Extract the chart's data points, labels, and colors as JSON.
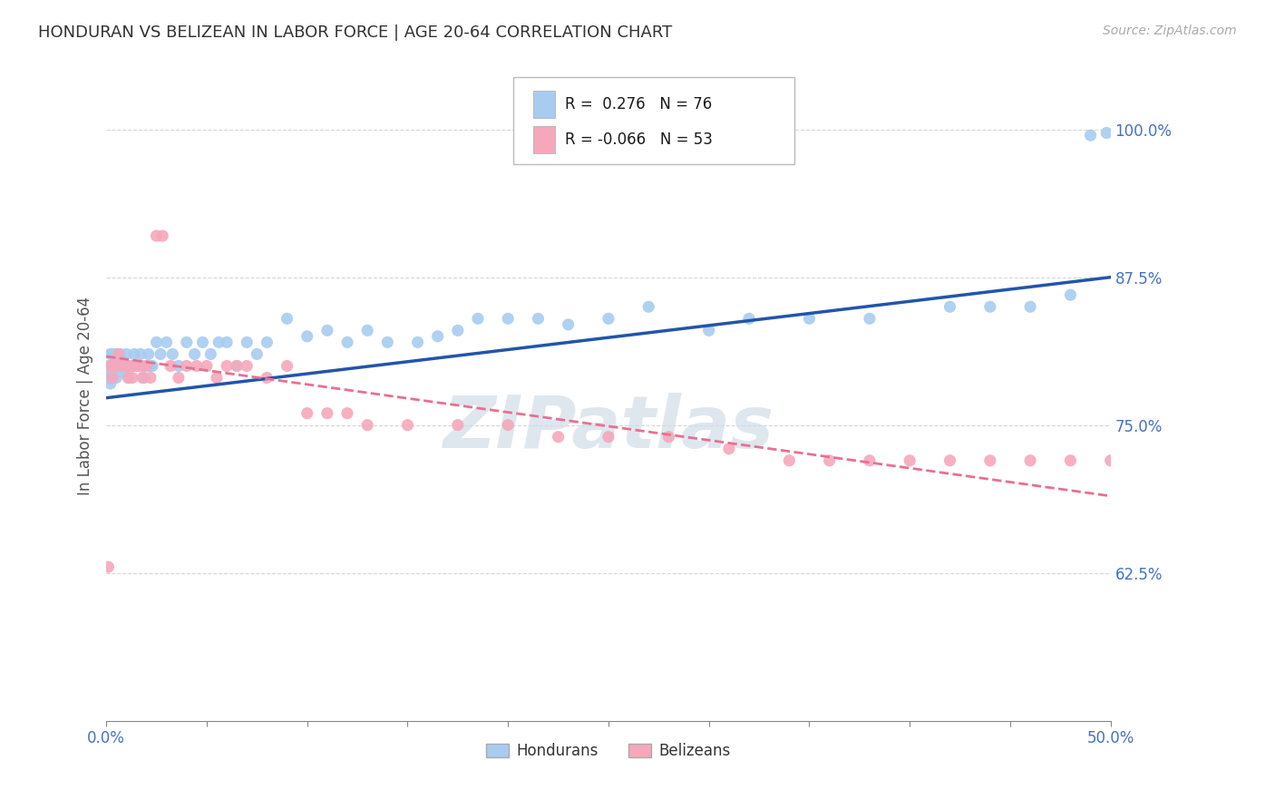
{
  "title": "HONDURAN VS BELIZEAN IN LABOR FORCE | AGE 20-64 CORRELATION CHART",
  "source": "Source: ZipAtlas.com",
  "ylabel": "In Labor Force | Age 20-64",
  "xlim": [
    0.0,
    0.5
  ],
  "ylim": [
    0.5,
    1.05
  ],
  "xtick_positions": [
    0.0,
    0.05,
    0.1,
    0.15,
    0.2,
    0.25,
    0.3,
    0.35,
    0.4,
    0.45,
    0.5
  ],
  "xtick_labels_show": {
    "0.0": "0.0%",
    "0.5": "50.0%"
  },
  "yticks": [
    0.625,
    0.75,
    0.875,
    1.0
  ],
  "yticklabels": [
    "62.5%",
    "75.0%",
    "87.5%",
    "100.0%"
  ],
  "R_honduran": 0.276,
  "N_honduran": 76,
  "R_belizean": -0.066,
  "N_belizean": 53,
  "honduran_color": "#A8CCF0",
  "belizean_color": "#F5A8BC",
  "trend_honduran_color": "#2255AA",
  "trend_belizean_color": "#E87090",
  "background_color": "#ffffff",
  "grid_color": "#cccccc",
  "title_color": "#333333",
  "axis_label_color": "#555555",
  "tick_color": "#4472c4",
  "watermark": "ZIPatlas",
  "legend_label_h": "Hondurans",
  "legend_label_b": "Belizeans",
  "honduran_x": [
    0.001,
    0.001,
    0.002,
    0.002,
    0.002,
    0.003,
    0.003,
    0.003,
    0.004,
    0.004,
    0.005,
    0.005,
    0.005,
    0.006,
    0.006,
    0.007,
    0.007,
    0.008,
    0.008,
    0.009,
    0.01,
    0.01,
    0.011,
    0.011,
    0.012,
    0.013,
    0.014,
    0.015,
    0.016,
    0.017,
    0.018,
    0.019,
    0.02,
    0.021,
    0.022,
    0.023,
    0.025,
    0.027,
    0.03,
    0.033,
    0.036,
    0.04,
    0.044,
    0.048,
    0.052,
    0.056,
    0.06,
    0.065,
    0.07,
    0.075,
    0.08,
    0.09,
    0.1,
    0.11,
    0.12,
    0.13,
    0.14,
    0.155,
    0.165,
    0.175,
    0.185,
    0.2,
    0.215,
    0.23,
    0.25,
    0.27,
    0.3,
    0.32,
    0.35,
    0.38,
    0.42,
    0.44,
    0.46,
    0.48,
    0.49,
    0.498
  ],
  "honduran_y": [
    0.8,
    0.79,
    0.785,
    0.795,
    0.81,
    0.8,
    0.79,
    0.81,
    0.8,
    0.795,
    0.805,
    0.79,
    0.81,
    0.8,
    0.795,
    0.8,
    0.81,
    0.8,
    0.795,
    0.8,
    0.8,
    0.81,
    0.8,
    0.79,
    0.8,
    0.8,
    0.81,
    0.8,
    0.8,
    0.81,
    0.8,
    0.79,
    0.8,
    0.81,
    0.8,
    0.8,
    0.82,
    0.81,
    0.82,
    0.81,
    0.8,
    0.82,
    0.81,
    0.82,
    0.81,
    0.82,
    0.82,
    0.8,
    0.82,
    0.81,
    0.82,
    0.84,
    0.825,
    0.83,
    0.82,
    0.83,
    0.82,
    0.82,
    0.825,
    0.83,
    0.84,
    0.84,
    0.84,
    0.835,
    0.84,
    0.85,
    0.83,
    0.84,
    0.84,
    0.84,
    0.85,
    0.85,
    0.85,
    0.86,
    0.995,
    0.997
  ],
  "belizean_x": [
    0.001,
    0.002,
    0.003,
    0.004,
    0.005,
    0.006,
    0.007,
    0.008,
    0.009,
    0.01,
    0.011,
    0.012,
    0.013,
    0.014,
    0.015,
    0.016,
    0.017,
    0.018,
    0.02,
    0.022,
    0.025,
    0.028,
    0.032,
    0.036,
    0.04,
    0.045,
    0.05,
    0.055,
    0.06,
    0.065,
    0.07,
    0.08,
    0.09,
    0.1,
    0.11,
    0.12,
    0.13,
    0.15,
    0.175,
    0.2,
    0.225,
    0.25,
    0.28,
    0.31,
    0.34,
    0.36,
    0.38,
    0.4,
    0.42,
    0.44,
    0.46,
    0.48,
    0.5
  ],
  "belizean_y": [
    0.63,
    0.8,
    0.79,
    0.8,
    0.8,
    0.81,
    0.8,
    0.8,
    0.8,
    0.8,
    0.79,
    0.8,
    0.79,
    0.8,
    0.8,
    0.8,
    0.8,
    0.79,
    0.8,
    0.79,
    0.91,
    0.91,
    0.8,
    0.79,
    0.8,
    0.8,
    0.8,
    0.79,
    0.8,
    0.8,
    0.8,
    0.79,
    0.8,
    0.76,
    0.76,
    0.76,
    0.75,
    0.75,
    0.75,
    0.75,
    0.74,
    0.74,
    0.74,
    0.73,
    0.72,
    0.72,
    0.72,
    0.72,
    0.72,
    0.72,
    0.72,
    0.72,
    0.72
  ],
  "trend_h_x0": 0.0,
  "trend_h_y0": 0.773,
  "trend_h_x1": 0.5,
  "trend_h_y1": 0.875,
  "trend_b_x0": 0.0,
  "trend_b_y0": 0.808,
  "trend_b_x1": 0.5,
  "trend_b_y1": 0.69
}
